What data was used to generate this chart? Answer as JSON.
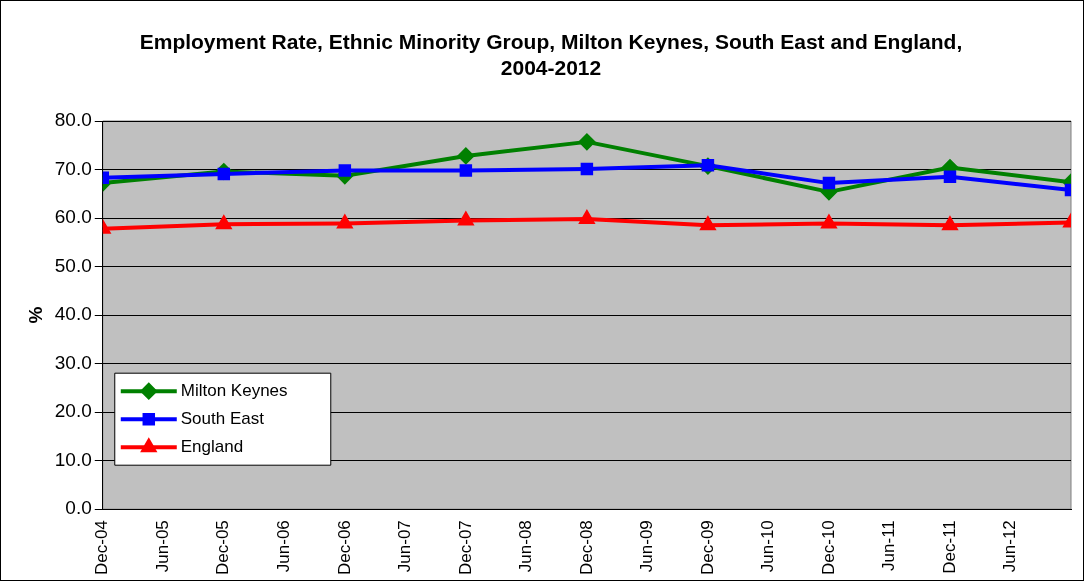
{
  "chart_data": {
    "type": "line",
    "title": "Employment Rate, Ethnic Minority Group, Milton Keynes, South East and England, 2004-2012",
    "ylabel": "%",
    "x": [
      "2004-12",
      "2005-12",
      "2006-12",
      "2007-12",
      "2008-12",
      "2009-12",
      "2010-12",
      "2011-12",
      "2012-12"
    ],
    "series": [
      {
        "name": "Milton Keynes",
        "color": "#008000",
        "marker": "diamond",
        "values": [
          67.2,
          69.6,
          68.7,
          72.8,
          75.7,
          70.7,
          65.4,
          70.4,
          67.4
        ]
      },
      {
        "name": "South East",
        "color": "#0000ff",
        "marker": "square",
        "values": [
          68.3,
          69.1,
          69.8,
          69.8,
          70.1,
          70.9,
          67.2,
          68.5,
          65.8
        ]
      },
      {
        "name": "England",
        "color": "#ff0000",
        "marker": "triangle",
        "values": [
          57.8,
          58.7,
          58.9,
          59.5,
          59.8,
          58.5,
          58.9,
          58.5,
          59.1
        ]
      }
    ],
    "xlim": [
      "2004-12",
      "2012-12"
    ],
    "xticks": [
      {
        "value": "2004-12",
        "label": "Dec-04"
      },
      {
        "value": "2005-06",
        "label": "Jun-05"
      },
      {
        "value": "2005-12",
        "label": "Dec-05"
      },
      {
        "value": "2006-06",
        "label": "Jun-06"
      },
      {
        "value": "2006-12",
        "label": "Dec-06"
      },
      {
        "value": "2007-06",
        "label": "Jun-07"
      },
      {
        "value": "2007-12",
        "label": "Dec-07"
      },
      {
        "value": "2008-06",
        "label": "Jun-08"
      },
      {
        "value": "2008-12",
        "label": "Dec-08"
      },
      {
        "value": "2009-06",
        "label": "Jun-09"
      },
      {
        "value": "2009-12",
        "label": "Dec-09"
      },
      {
        "value": "2010-06",
        "label": "Jun-10"
      },
      {
        "value": "2010-12",
        "label": "Dec-10"
      },
      {
        "value": "2011-06",
        "label": "Jun-11"
      },
      {
        "value": "2011-12",
        "label": "Dec-11"
      },
      {
        "value": "2012-06",
        "label": "Jun-12"
      }
    ],
    "ylim": [
      0,
      80
    ],
    "yticks": [
      {
        "value": 0,
        "label": "0.0"
      },
      {
        "value": 10,
        "label": "10.0"
      },
      {
        "value": 20,
        "label": "20.0"
      },
      {
        "value": 30,
        "label": "30.0"
      },
      {
        "value": 40,
        "label": "40.0"
      },
      {
        "value": 50,
        "label": "50.0"
      },
      {
        "value": 60,
        "label": "60.0"
      },
      {
        "value": 70,
        "label": "70.0"
      },
      {
        "value": 80,
        "label": "80.0"
      }
    ],
    "grid": "y",
    "legend": "bottom left",
    "line_style": "solid"
  }
}
